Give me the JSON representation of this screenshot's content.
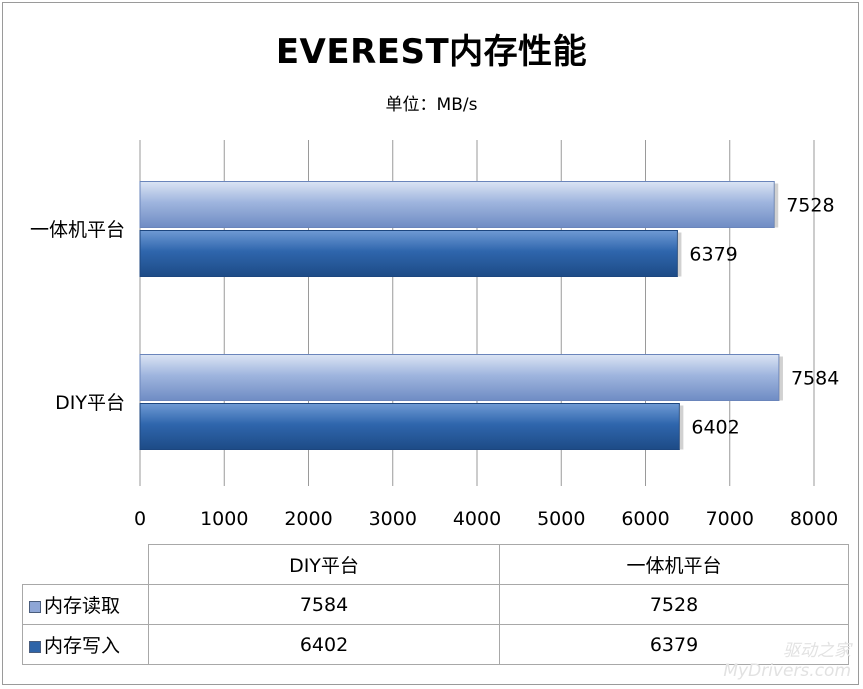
{
  "chart_data": {
    "type": "bar",
    "orientation": "horizontal",
    "title": "EVEREST内存性能",
    "subtitle": "单位：MB/s",
    "categories": [
      "DIY平台",
      "一体机平台"
    ],
    "series": [
      {
        "name": "内存读取",
        "values": [
          7584,
          7528
        ],
        "color": "#8ea6d6"
      },
      {
        "name": "内存写入",
        "values": [
          6402,
          6379
        ],
        "color": "#2e64a8"
      }
    ],
    "xlim": [
      0,
      8000
    ],
    "x_ticks": [
      "0",
      "1000",
      "2000",
      "3000",
      "4000",
      "5000",
      "6000",
      "7000",
      "8000"
    ],
    "grid": true,
    "data_labels": true,
    "data_table": true
  },
  "watermark": {
    "line1": "驱动之家",
    "line2": "MyDrivers.com"
  }
}
